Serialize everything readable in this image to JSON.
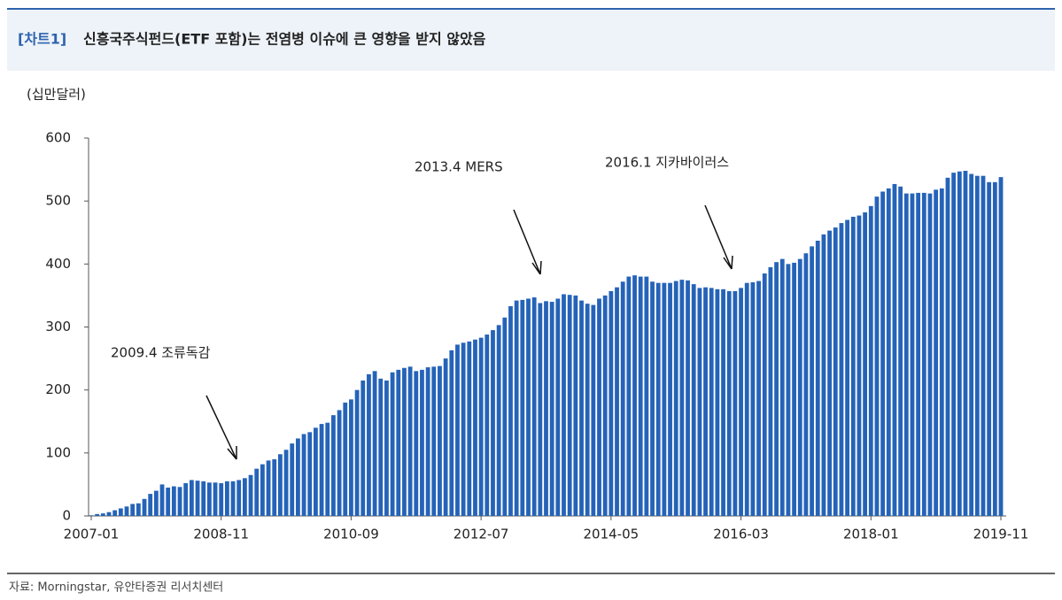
{
  "chart_data": {
    "type": "bar",
    "title_tag": "[차트1]",
    "title": "신흥국주식펀드(ETF 포함)는 전염병 이슈에 큰 영향을 받지 않았음",
    "y_label": "(십만달러)",
    "source": "자료: Morningstar, 유안타증권 리서치센터",
    "color": "#2563b8",
    "ylim": [
      0,
      600
    ],
    "yticks": [
      0,
      100,
      200,
      300,
      400,
      500,
      600
    ],
    "categories": [
      "2007-01",
      null,
      null,
      null,
      null,
      null,
      null,
      null,
      null,
      null,
      null,
      null,
      null,
      null,
      null,
      null,
      null,
      null,
      null,
      null,
      null,
      null,
      "2008-11",
      null,
      null,
      null,
      null,
      null,
      null,
      null,
      null,
      null,
      null,
      null,
      null,
      null,
      null,
      null,
      null,
      null,
      null,
      null,
      null,
      null,
      "2010-09",
      null,
      null,
      null,
      null,
      null,
      null,
      null,
      null,
      null,
      null,
      null,
      null,
      null,
      null,
      null,
      null,
      null,
      null,
      null,
      null,
      null,
      "2012-07",
      null,
      null,
      null,
      null,
      null,
      null,
      null,
      null,
      null,
      null,
      null,
      null,
      null,
      null,
      null,
      null,
      null,
      null,
      null,
      null,
      null,
      "2014-05",
      null,
      null,
      null,
      null,
      null,
      null,
      null,
      null,
      null,
      null,
      null,
      null,
      null,
      null,
      null,
      null,
      null,
      null,
      null,
      null,
      null,
      "2016-03",
      null,
      null,
      null,
      null,
      null,
      null,
      null,
      null,
      null,
      null,
      null,
      null,
      null,
      null,
      null,
      null,
      null,
      null,
      null,
      null,
      null,
      "2018-01",
      null,
      null,
      null,
      null,
      null,
      null,
      null,
      null,
      null,
      null,
      null,
      null,
      null,
      null,
      null,
      null,
      null,
      null,
      null,
      null,
      null,
      "2019-11"
    ],
    "values": [
      1,
      3,
      4,
      6,
      9,
      12,
      15,
      19,
      20,
      27,
      35,
      40,
      50,
      45,
      47,
      46,
      52,
      57,
      56,
      55,
      53,
      53,
      52,
      55,
      55,
      57,
      60,
      65,
      75,
      82,
      88,
      90,
      98,
      105,
      115,
      123,
      130,
      133,
      140,
      146,
      148,
      160,
      168,
      180,
      185,
      200,
      215,
      225,
      230,
      218,
      215,
      228,
      232,
      235,
      237,
      230,
      232,
      236,
      237,
      238,
      250,
      263,
      272,
      275,
      277,
      280,
      283,
      288,
      295,
      303,
      315,
      333,
      342,
      343,
      345,
      347,
      338,
      341,
      340,
      345,
      352,
      351,
      350,
      342,
      337,
      335,
      345,
      350,
      357,
      363,
      372,
      380,
      382,
      380,
      380,
      372,
      370,
      370,
      370,
      373,
      375,
      374,
      368,
      362,
      363,
      362,
      360,
      360,
      357,
      357,
      362,
      370,
      371,
      373,
      385,
      395,
      403,
      408,
      400,
      402,
      408,
      417,
      428,
      437,
      447,
      453,
      458,
      465,
      470,
      475,
      477,
      482,
      492,
      507,
      515,
      520,
      527,
      523,
      512,
      512,
      513,
      513,
      512,
      518,
      520,
      537,
      545,
      547,
      548,
      543,
      540,
      540,
      530,
      530,
      538
    ],
    "annotations": [
      "2009.4 조류독감",
      "2013.4 MERS",
      "2016.1 지카바이러스"
    ]
  }
}
